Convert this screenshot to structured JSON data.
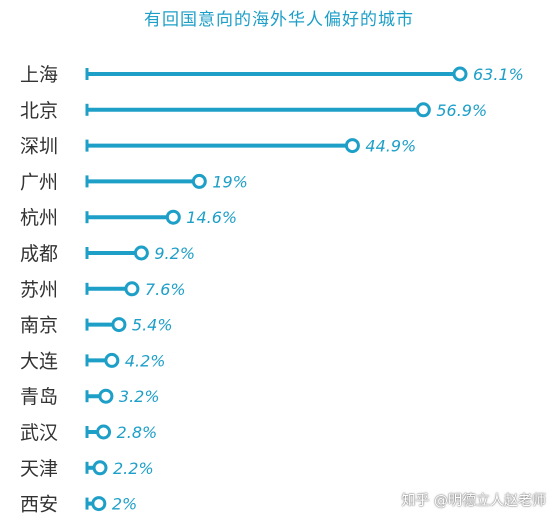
{
  "chart_data": {
    "type": "bar",
    "title": "有回国意向的海外华人偏好的城市",
    "categories": [
      "上海",
      "北京",
      "深圳",
      "广州",
      "杭州",
      "成都",
      "苏州",
      "南京",
      "大连",
      "青岛",
      "武汉",
      "天津",
      "西安"
    ],
    "values": [
      63.1,
      56.9,
      44.9,
      19,
      14.6,
      9.2,
      7.6,
      5.4,
      4.2,
      3.2,
      2.8,
      2.2,
      2
    ],
    "value_labels": [
      "63.1%",
      "56.9%",
      "44.9%",
      "19%",
      "14.6%",
      "9.2%",
      "7.6%",
      "5.4%",
      "4.2%",
      "3.2%",
      "2.8%",
      "2.2%",
      "2%"
    ],
    "unit": "%",
    "orientation": "horizontal",
    "style": "lollipop",
    "grid": false,
    "colors": {
      "line": "#1e9fc8",
      "label": "#1e9fc8",
      "category": "#333333"
    }
  },
  "watermark": "知乎 @明德立人赵老师"
}
